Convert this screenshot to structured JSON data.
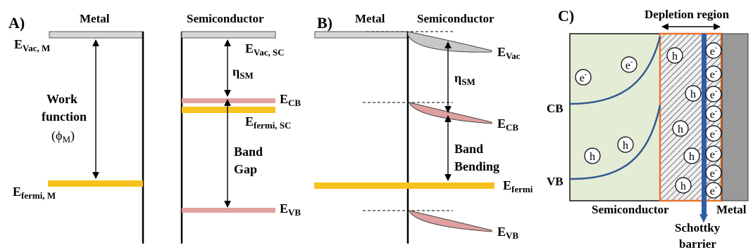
{
  "colors": {
    "fermi_band": "#f6c21e",
    "vac_band": "#d7d7d7",
    "cb_vb_band": "#e3a0a0",
    "semiconductor_fill": "#e4ecd6",
    "metal_fill": "#999999",
    "depletion_border": "#e8742e",
    "curve": "#34578f",
    "barrier": "#2f5ea8"
  },
  "panelA": {
    "label": "A)",
    "metal_title": "Metal",
    "sc_title": "Semiconductor",
    "evac_m": {
      "base": "E",
      "sub": "Vac, M"
    },
    "work_function": [
      "Work",
      "function"
    ],
    "phi": {
      "pre": "(ϕ",
      "sub": "M",
      "post": ")"
    },
    "efermi_m": {
      "base": "E",
      "sub": "fermi, M"
    },
    "evac_sc": {
      "base": "E",
      "sub": "Vac, SC"
    },
    "eta": {
      "base": "η",
      "sub": "SM"
    },
    "ecb": {
      "base": "E",
      "sub": "CB"
    },
    "efermi_sc": {
      "base": "E",
      "sub": "fermi, SC"
    },
    "band_gap": [
      "Band",
      "Gap"
    ],
    "evb": {
      "base": "E",
      "sub": "VB"
    }
  },
  "panelB": {
    "label": "B)",
    "metal_title": "Metal",
    "sc_title": "Semiconductor",
    "evac": {
      "base": "E",
      "sub": "Vac"
    },
    "eta": {
      "base": "η",
      "sub": "SM"
    },
    "ecb": {
      "base": "E",
      "sub": "CB"
    },
    "band_bending": [
      "Band",
      "Bending"
    ],
    "efermi": {
      "base": "E",
      "sub": "fermi"
    },
    "evb": {
      "base": "E",
      "sub": "VB"
    }
  },
  "panelC": {
    "label": "C)",
    "depletion": "Depletion region",
    "cb": "CB",
    "vb": "VB",
    "semiconductor": "Semiconductor",
    "metal": "Metal",
    "schottky": [
      "Schottky",
      "barrier"
    ],
    "electron": {
      "base": "e",
      "sup": "-"
    },
    "hole": "h"
  }
}
